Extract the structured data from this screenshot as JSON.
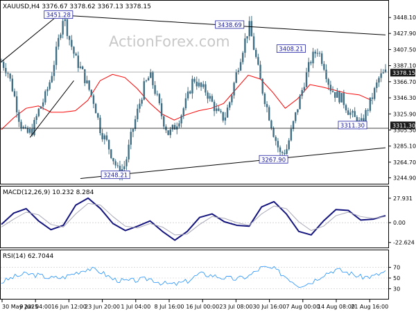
{
  "header": {
    "main_title": "XAUUSD,H4  3376.67 3378.62 3367.13 3378.15",
    "macd_title": "MACD(12,26,9) 10.232 8.284",
    "rsi_title": "RSI(14) 62.7044",
    "watermark": "ActionForex.com"
  },
  "colors": {
    "candle": "#3f6e84",
    "ma": "#ff0000",
    "macd": "#13137e",
    "signal": "#a8a8b8",
    "rsi": "#1e90ff",
    "trendline": "#000000",
    "grid_line": "#8c8c8c",
    "label_text": "#1a1aa0",
    "price_box_bg": "#1a1a1a"
  },
  "chart_data": [
    {
      "type": "candlestick",
      "title": "XAUUSD,H4  3376.67 3378.62 3367.13 3378.15",
      "ylim": [
        3240.0,
        3465.0
      ],
      "yticks": [
        "3448.10",
        "3427.90",
        "3407.50",
        "3387.10",
        "3366.70",
        "3346.30",
        "3325.90",
        "3305.50",
        "3285.10",
        "3264.70",
        "3244.90"
      ],
      "last_price": "3378.15",
      "level_marker": "3311.30",
      "annotations": [
        {
          "text": "3451.28",
          "candle_index": 26
        },
        {
          "text": "3438.69",
          "candle_index": 104
        },
        {
          "text": "3408.21",
          "candle_index": 132
        },
        {
          "text": "3311.30",
          "candle_index": 160
        },
        {
          "text": "3267.90",
          "candle_index": 124
        },
        {
          "text": "3248.21",
          "candle_index": 52
        }
      ],
      "moving_average": [
        3306,
        3321,
        3333,
        3336,
        3328,
        3328,
        3330,
        3343,
        3368,
        3376,
        3372,
        3358,
        3340,
        3326,
        3318,
        3325,
        3330,
        3333,
        3339,
        3357,
        3375,
        3370,
        3353,
        3333,
        3345,
        3363,
        3360,
        3356,
        3352,
        3350,
        3343
      ],
      "trendlines": [
        {
          "from": [
            0,
            3392
          ],
          "to": [
            26,
            3451.28
          ]
        },
        {
          "from": [
            13,
            3296
          ],
          "to": [
            33,
            3368
          ]
        },
        {
          "from": [
            26,
            3451.28
          ],
          "to": [
            175,
            3426
          ]
        },
        {
          "from": [
            36,
            3244
          ],
          "to": [
            175,
            3283
          ]
        }
      ],
      "x_tick_labels": [
        "30 May 2025",
        "9 Jun 04:00",
        "16 Jun 12:00",
        "23 Jun 20:00",
        "1 Jul 04:00",
        "8 Jul 16:00",
        "16 Jul 00:00",
        "23 Jul 08:00",
        "30 Jul 16:00",
        "7 Aug 00:00",
        "14 Aug 08:00",
        "21 Aug 16:00"
      ]
    },
    {
      "type": "line",
      "title": "MACD(12,26,9) 10.232 8.284",
      "ylim": [
        -26,
        31
      ],
      "yticks": [
        "27.931",
        "0.00",
        "-22.624"
      ],
      "series": [
        {
          "name": "MACD",
          "values": [
            -2,
            11,
            16,
            2,
            -8,
            -3,
            20,
            28,
            16,
            -1,
            -9,
            -4,
            2,
            -10,
            -20,
            -10,
            6,
            10,
            1,
            -3,
            -4,
            18,
            24,
            10,
            -10,
            -14,
            2,
            15,
            14,
            3,
            4,
            8
          ]
        },
        {
          "name": "Signal",
          "values": [
            -5,
            4,
            12,
            9,
            -2,
            -5,
            10,
            22,
            20,
            7,
            -4,
            -6,
            -1,
            -5,
            -14,
            -13,
            -2,
            7,
            5,
            0,
            -3,
            10,
            19,
            16,
            1,
            -9,
            -4,
            8,
            12,
            7,
            5,
            7
          ]
        }
      ]
    },
    {
      "type": "line",
      "title": "RSI(14) 62.7044",
      "ylim": [
        15,
        85
      ],
      "yticks": [
        "70",
        "50",
        "30"
      ],
      "series": [
        {
          "name": "RSI",
          "values": [
            42,
            52,
            58,
            55,
            50,
            51,
            60,
            68,
            62,
            48,
            44,
            46,
            49,
            40,
            38,
            44,
            58,
            55,
            50,
            48,
            54,
            70,
            67,
            52,
            36,
            42,
            57,
            66,
            60,
            52,
            53,
            62
          ]
        }
      ]
    }
  ]
}
